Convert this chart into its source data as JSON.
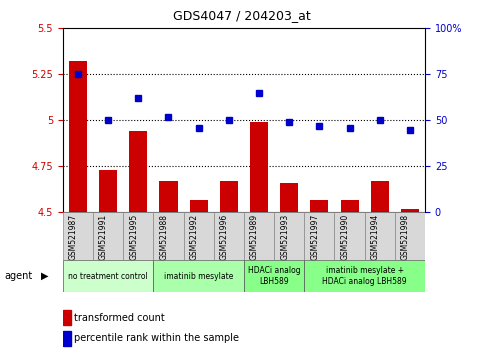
{
  "title": "GDS4047 / 204203_at",
  "samples": [
    "GSM521987",
    "GSM521991",
    "GSM521995",
    "GSM521988",
    "GSM521992",
    "GSM521996",
    "GSM521989",
    "GSM521993",
    "GSM521997",
    "GSM521990",
    "GSM521994",
    "GSM521998"
  ],
  "bar_values": [
    5.32,
    4.73,
    4.94,
    4.67,
    4.57,
    4.67,
    4.99,
    4.66,
    4.57,
    4.57,
    4.67,
    4.52
  ],
  "dot_values": [
    75,
    50,
    62,
    52,
    46,
    50,
    65,
    49,
    47,
    46,
    50,
    45
  ],
  "bar_base": 4.5,
  "ylim_left": [
    4.5,
    5.5
  ],
  "ylim_right": [
    0,
    100
  ],
  "yticks_left": [
    4.5,
    4.75,
    5.0,
    5.25,
    5.5
  ],
  "yticks_right": [
    0,
    25,
    50,
    75,
    100
  ],
  "ytick_labels_left": [
    "4.5",
    "4.75",
    "5",
    "5.25",
    "5.5"
  ],
  "ytick_labels_right": [
    "0",
    "25",
    "50",
    "75",
    "100%"
  ],
  "hlines": [
    4.75,
    5.0,
    5.25
  ],
  "bar_color": "#cc0000",
  "dot_color": "#0000cc",
  "group_labels": [
    "no treatment control",
    "imatinib mesylate",
    "HDACi analog\nLBH589",
    "imatinib mesylate +\nHDACi analog LBH589"
  ],
  "group_starts": [
    0,
    3,
    6,
    8
  ],
  "group_ends": [
    3,
    6,
    8,
    12
  ],
  "group_colors": [
    "#ccffcc",
    "#aaffaa",
    "#88ff88",
    "#88ff88"
  ],
  "legend_bar_label": "transformed count",
  "legend_dot_label": "percentile rank within the sample",
  "bar_color_left": "#cc0000",
  "tick_color_right": "#0000cc",
  "bar_width": 0.6,
  "sample_bg": "#d8d8d8"
}
